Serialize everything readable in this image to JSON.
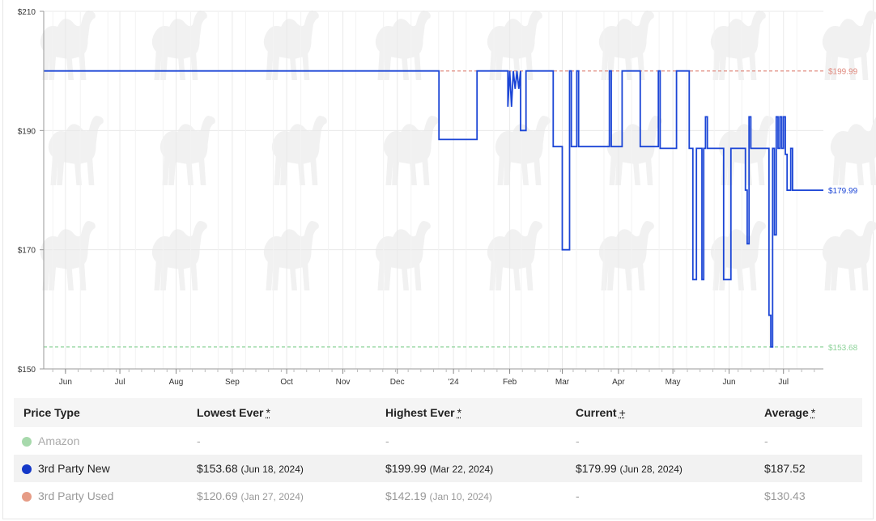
{
  "chart_data": {
    "type": "line",
    "ylim": [
      150,
      210
    ],
    "y_ticks": [
      "$150",
      "$170",
      "$190",
      "$210"
    ],
    "y_tick_values": [
      150,
      170,
      190,
      210
    ],
    "x_tick_labels": [
      "Jun",
      "Jul",
      "Aug",
      "Sep",
      "Oct",
      "Nov",
      "Dec",
      "'24",
      "Feb",
      "Mar",
      "Apr",
      "May",
      "Jun",
      "Jul"
    ],
    "x_tick_days": [
      0,
      30,
      61,
      92,
      122,
      153,
      183,
      214,
      245,
      274,
      305,
      335,
      366,
      396
    ],
    "x_date_start": "2023-05-29",
    "x_date_end": "2024-07-13",
    "grid": true,
    "reference_lines": [
      {
        "label": "$199.99",
        "value": 199.99,
        "color": "#e08a7f"
      },
      {
        "label": "$153.68",
        "value": 153.68,
        "color": "#8ed39a"
      }
    ],
    "series": [
      {
        "name": "3rd Party New",
        "color": "#1b45d6",
        "step_points": [
          [
            -12,
            199.99
          ],
          [
            206,
            199.99
          ],
          [
            206,
            188.5
          ],
          [
            227,
            188.5
          ],
          [
            227,
            199.99
          ],
          [
            244,
            199.99
          ],
          [
            244,
            194
          ],
          [
            245,
            199.99
          ],
          [
            246,
            194
          ],
          [
            247,
            199.99
          ],
          [
            248,
            197
          ],
          [
            249,
            199.99
          ],
          [
            250,
            197
          ],
          [
            251,
            199.99
          ],
          [
            251,
            190
          ],
          [
            254,
            190
          ],
          [
            254,
            199.99
          ],
          [
            269,
            199.99
          ],
          [
            269,
            187.3
          ],
          [
            274,
            187.3
          ],
          [
            274,
            170
          ],
          [
            278,
            170
          ],
          [
            278,
            199.99
          ],
          [
            279,
            199.99
          ],
          [
            279,
            187.3
          ],
          [
            282,
            187.3
          ],
          [
            282,
            199.99
          ],
          [
            283,
            199.99
          ],
          [
            283,
            187.3
          ],
          [
            300,
            187.3
          ],
          [
            300,
            199.99
          ],
          [
            301,
            199.99
          ],
          [
            301,
            187.3
          ],
          [
            307,
            187.3
          ],
          [
            307,
            199.99
          ],
          [
            317,
            199.99
          ],
          [
            317,
            187.3
          ],
          [
            327,
            187.3
          ],
          [
            327,
            199.99
          ],
          [
            328,
            199.99
          ],
          [
            328,
            187
          ],
          [
            337,
            187
          ],
          [
            337,
            199.99
          ],
          [
            344,
            199.99
          ],
          [
            344,
            187
          ],
          [
            346,
            187
          ],
          [
            346,
            165
          ],
          [
            348,
            165
          ],
          [
            348,
            187
          ],
          [
            351,
            187
          ],
          [
            351,
            165
          ],
          [
            352,
            165
          ],
          [
            352,
            187
          ],
          [
            353,
            187
          ],
          [
            353,
            192.3
          ],
          [
            354,
            192.3
          ],
          [
            354,
            187
          ],
          [
            363,
            187
          ],
          [
            363,
            165
          ],
          [
            367,
            165
          ],
          [
            367,
            187
          ],
          [
            375,
            187
          ],
          [
            375,
            180
          ],
          [
            376,
            180
          ],
          [
            376,
            171
          ],
          [
            377,
            171
          ],
          [
            377,
            192.3
          ],
          [
            378,
            192.3
          ],
          [
            378,
            187
          ],
          [
            388,
            187
          ],
          [
            388,
            159
          ],
          [
            389,
            159
          ],
          [
            389,
            153.68
          ],
          [
            390,
            153.68
          ],
          [
            390,
            187
          ],
          [
            391,
            187
          ],
          [
            391,
            172.5
          ],
          [
            392,
            172.5
          ],
          [
            392,
            192.3
          ],
          [
            393,
            192.3
          ],
          [
            393,
            187
          ],
          [
            394,
            187
          ],
          [
            394,
            192.3
          ],
          [
            395,
            192.3
          ],
          [
            395,
            187
          ],
          [
            396,
            187
          ],
          [
            396,
            192.3
          ],
          [
            397,
            192.3
          ],
          [
            397,
            186
          ],
          [
            398,
            186
          ],
          [
            398,
            179.99
          ],
          [
            400,
            179.99
          ],
          [
            400,
            187
          ],
          [
            401,
            187
          ],
          [
            401,
            179.99
          ],
          [
            418,
            179.99
          ]
        ]
      }
    ]
  },
  "table": {
    "headers": {
      "price_type": "Price Type",
      "lowest": "Lowest Ever",
      "highest": "Highest Ever",
      "current": "Current",
      "average": "Average",
      "star": "*",
      "plus": "+"
    },
    "rows": [
      {
        "name": "Amazon",
        "color": "#a7d9ac",
        "lowest": "-",
        "lowest_date": "",
        "highest": "-",
        "highest_date": "",
        "current": "-",
        "current_date": "",
        "average": "-"
      },
      {
        "name": "3rd Party New",
        "color": "#1438c8",
        "lowest": "$153.68",
        "lowest_date": "(Jun 18, 2024)",
        "highest": "$199.99",
        "highest_date": "(Mar 22, 2024)",
        "current": "$179.99",
        "current_date": "(Jun 28, 2024)",
        "average": "$187.52"
      },
      {
        "name": "3rd Party Used",
        "color": "#e69c86",
        "lowest": "$120.69",
        "lowest_date": "(Jan 27, 2024)",
        "highest": "$142.19",
        "highest_date": "(Jan 10, 2024)",
        "current": "-",
        "current_date": "",
        "average": "$130.43"
      }
    ]
  }
}
